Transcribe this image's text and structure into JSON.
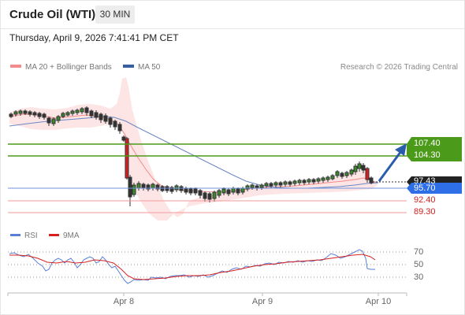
{
  "header": {
    "title": "Crude Oil (WTI)",
    "timeframe": "30 MIN",
    "datetime": "Thursday, April 9, 2026 7:41:41 PM CET"
  },
  "legend": {
    "ma20_label": "MA 20 + Bollinger Bands",
    "ma20_color": "#f28b8b",
    "ma50_label": "MA 50",
    "ma50_color": "#3a5fa0",
    "copyright": "Research © 2026 Trading Central"
  },
  "levels": {
    "r2": "107.40",
    "r1": "104.30",
    "last": "97.43",
    "pivot": "95.70",
    "s1": "92.40",
    "s2": "89.30",
    "resistance_color": "#4c9a1a",
    "pivot_color": "#2e6ee6",
    "support_color": "#d62020"
  },
  "rsi": {
    "label": "RSI",
    "ma_label": "9MA",
    "rsi_color": "#5a7fd6",
    "ma_color": "#d62020",
    "levels": [
      "70",
      "50",
      "30"
    ]
  },
  "xaxis": {
    "labels": [
      "Apr 8",
      "Apr 9",
      "Apr 10"
    ]
  }
}
